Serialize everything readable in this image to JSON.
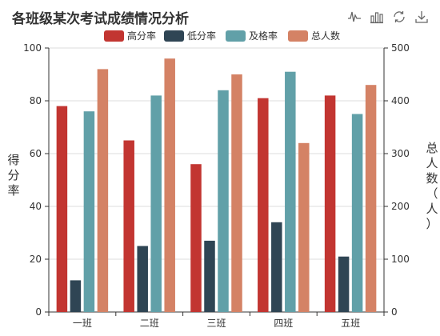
{
  "title": "各班级某次考试成绩情况分析",
  "toolbox": [
    {
      "name": "line-chart-icon"
    },
    {
      "name": "bar-chart-icon"
    },
    {
      "name": "restore-icon"
    },
    {
      "name": "download-icon"
    }
  ],
  "colors": {
    "series": [
      "#c23531",
      "#2f4554",
      "#61a0a8",
      "#d48265"
    ],
    "axis": "#333333",
    "grid": "#dddddd"
  },
  "chart_data": {
    "type": "bar",
    "title": "各班级某次考试成绩情况分析",
    "categories": [
      "一班",
      "二班",
      "三班",
      "四班",
      "五班"
    ],
    "legend_position": "top-center",
    "grid": true,
    "yaxis_left": {
      "name": "得分率",
      "range": [
        0,
        100
      ],
      "ticks": [
        "0",
        "20",
        "40",
        "60",
        "80",
        "100"
      ]
    },
    "yaxis_right": {
      "name": "总人数（人）",
      "range": [
        0,
        500
      ],
      "ticks": [
        "0",
        "100",
        "200",
        "300",
        "400",
        "500"
      ]
    },
    "series": [
      {
        "name": "高分率",
        "axis": "left",
        "values": [
          78,
          65,
          56,
          81,
          82
        ]
      },
      {
        "name": "低分率",
        "axis": "left",
        "values": [
          12,
          25,
          27,
          34,
          21
        ]
      },
      {
        "name": "及格率",
        "axis": "left",
        "values": [
          76,
          82,
          84,
          91,
          75
        ]
      },
      {
        "name": "总人数",
        "axis": "right",
        "values": [
          460,
          480,
          450,
          320,
          430
        ]
      }
    ]
  }
}
